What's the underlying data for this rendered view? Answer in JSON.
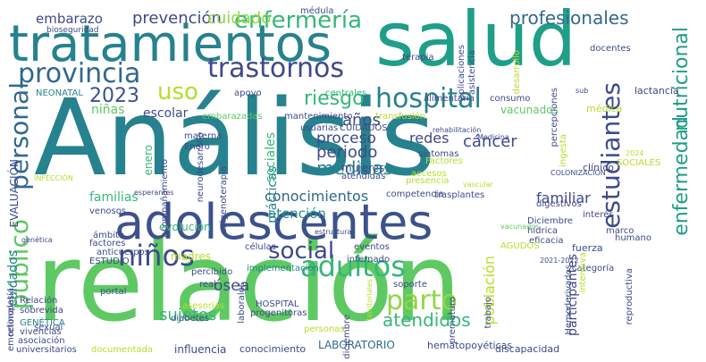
{
  "word_cloud": {
    "palette": {
      "dark_purple": "#440154",
      "indigo": "#3b528b",
      "slate_blue": "#3e4a89",
      "blue": "#31688e",
      "teal": "#26828e",
      "teal_green": "#1f9e89",
      "green": "#35b779",
      "light_green": "#6ece58",
      "lime": "#b5de2b",
      "yellow": "#dde318"
    },
    "words": [
      {
        "text": "Análisis",
        "color": "#26828e"
      },
      {
        "text": "relación",
        "color": "#5ec962"
      },
      {
        "text": "salud",
        "color": "#1f9e89"
      },
      {
        "text": "adolescentes",
        "color": "#3b528b"
      },
      {
        "text": "tratamientos",
        "color": "#26828e"
      },
      {
        "text": "provincia",
        "color": "#31688e"
      },
      {
        "text": "trastornos",
        "color": "#3e4a89"
      },
      {
        "text": "enfermería",
        "color": "#35b779"
      },
      {
        "text": "profesionales",
        "color": "#31688e"
      },
      {
        "text": "nutricional",
        "color": "#1f9e89"
      },
      {
        "text": "estudiantes",
        "color": "#3e4a89"
      },
      {
        "text": "enfermedad",
        "color": "#1f9e89"
      },
      {
        "text": "hospital",
        "color": "#26828e"
      },
      {
        "text": "niños",
        "color": "#3e4a89"
      },
      {
        "text": "adultos",
        "color": "#35b779"
      },
      {
        "text": "personal",
        "color": "#31688e"
      },
      {
        "text": "parto",
        "color": "#90d743"
      },
      {
        "text": "social",
        "color": "#3e4a89"
      },
      {
        "text": "uso",
        "color": "#b5de2b"
      },
      {
        "text": "2023",
        "color": "#3b528b"
      },
      {
        "text": "prevención",
        "color": "#3e4a89"
      },
      {
        "text": "cuidado",
        "color": "#90d743"
      },
      {
        "text": "embarazo",
        "color": "#3e4a89"
      },
      {
        "text": "riesgo",
        "color": "#35b779"
      },
      {
        "text": "público",
        "color": "#5ec962"
      },
      {
        "text": "conocimientos",
        "color": "#31688e"
      },
      {
        "text": "familiar",
        "color": "#3e4a89"
      },
      {
        "text": "atención",
        "color": "#21918c"
      },
      {
        "text": "familias",
        "color": "#35b779"
      },
      {
        "text": "atendidos",
        "color": "#35b779"
      },
      {
        "text": "sujetos",
        "color": "#35b779"
      },
      {
        "text": "cáncer",
        "color": "#3e4a89"
      },
      {
        "text": "periodo",
        "color": "#3e4a89"
      },
      {
        "text": "proceso",
        "color": "#3e4a89"
      },
      {
        "text": "medidas",
        "color": "#26828e"
      },
      {
        "text": "prácticas",
        "color": "#26828e"
      },
      {
        "text": "sociales",
        "color": "#35b779"
      },
      {
        "text": "redes",
        "color": "#3e4a89"
      },
      {
        "text": "años",
        "color": "#3e4a89"
      },
      {
        "text": "población",
        "color": "#b5de2b"
      },
      {
        "text": "escolar",
        "color": "#3e4a89"
      },
      {
        "text": "niñas",
        "color": "#5ec962"
      },
      {
        "text": "ósea",
        "color": "#3e4a89"
      },
      {
        "text": "cuidados",
        "color": "#26828e"
      },
      {
        "text": "EVALUACIÓN",
        "color": "#3e4a89"
      },
      {
        "text": "enero",
        "color": "#35b779"
      },
      {
        "text": "mujeres",
        "color": "#3e4a89"
      },
      {
        "text": "vacunados",
        "color": "#5ec962"
      },
      {
        "text": "participantes",
        "color": "#3e4a89"
      },
      {
        "text": "LABORATORIO",
        "color": "#31688e"
      },
      {
        "text": "influencia",
        "color": "#3e4a89"
      },
      {
        "text": "conocimiento",
        "color": "#3e4a89"
      },
      {
        "text": "hematopoyéticas",
        "color": "#3e4a89"
      },
      {
        "text": "discapacidad",
        "color": "#3e4a89"
      },
      {
        "text": "universitarios",
        "color": "#3e4a89"
      },
      {
        "text": "documentada",
        "color": "#b5de2b"
      },
      {
        "text": "asociación",
        "color": "#3e4a89"
      },
      {
        "text": "vivencias",
        "color": "#3e4a89"
      },
      {
        "text": "GENÉTICA",
        "color": "#26828e"
      },
      {
        "text": "sobrevida",
        "color": "#3e4a89"
      },
      {
        "text": "Relación",
        "color": "#3e4a89"
      },
      {
        "text": "portal",
        "color": "#3e4a89"
      },
      {
        "text": "real",
        "color": "#3e4a89"
      },
      {
        "text": "diabetes",
        "color": "#3e4a89"
      },
      {
        "text": "madres",
        "color": "#b5de2b"
      },
      {
        "text": "percibido",
        "color": "#3e4a89"
      },
      {
        "text": "progenitoras",
        "color": "#3e4a89"
      },
      {
        "text": "implementación",
        "color": "#26828e"
      },
      {
        "text": "células",
        "color": "#3e4a89"
      },
      {
        "text": "eventos",
        "color": "#3e4a89"
      },
      {
        "text": "internado",
        "color": "#3e4a89"
      },
      {
        "text": "trasplantes",
        "color": "#3e4a89"
      },
      {
        "text": "competencia",
        "color": "#3e4a89"
      },
      {
        "text": "evolución",
        "color": "#35b779"
      },
      {
        "text": "ámbito",
        "color": "#3e4a89"
      },
      {
        "text": "factores",
        "color": "#3e4a89"
      },
      {
        "text": "anticuerpos",
        "color": "#3e4a89"
      },
      {
        "text": "ESTUDIO",
        "color": "#3e4a89"
      },
      {
        "text": "venosos",
        "color": "#3e4a89"
      },
      {
        "text": "mantenimiento",
        "color": "#3e4a89"
      },
      {
        "text": "embarazadas",
        "color": "#5ec962"
      },
      {
        "text": "usuarias",
        "color": "#3e4a89"
      },
      {
        "text": "CUIDADOS",
        "color": "#3e4a89"
      },
      {
        "text": "atendidas",
        "color": "#3e4a89"
      },
      {
        "text": "alimentaria",
        "color": "#3e4a89"
      },
      {
        "text": "centrales",
        "color": "#35b779"
      },
      {
        "text": "consumo",
        "color": "#3e4a89"
      },
      {
        "text": "transfusión",
        "color": "#b5de2b"
      },
      {
        "text": "lactancia",
        "color": "#3e4a89"
      },
      {
        "text": "médica",
        "color": "#b5de2b"
      },
      {
        "text": "clínico",
        "color": "#3e4a89"
      },
      {
        "text": "interés",
        "color": "#3e4a89"
      },
      {
        "text": "SOCIALES",
        "color": "#b5de2b"
      },
      {
        "text": "marco",
        "color": "#3e4a89"
      },
      {
        "text": "humano",
        "color": "#3e4a89"
      },
      {
        "text": "Diciembre",
        "color": "#3e4a89"
      },
      {
        "text": "hídrica",
        "color": "#3e4a89"
      },
      {
        "text": "eficacia",
        "color": "#3e4a89"
      },
      {
        "text": "fuerza",
        "color": "#3e4a89"
      },
      {
        "text": "categoría",
        "color": "#3e4a89"
      },
      {
        "text": "AGUDOS",
        "color": "#b5de2b"
      },
      {
        "text": "digestivos",
        "color": "#3e4a89"
      },
      {
        "text": "síntomas",
        "color": "#3e4a89"
      },
      {
        "text": "accesos",
        "color": "#b5de2b"
      },
      {
        "text": "presencia",
        "color": "#b5de2b"
      },
      {
        "text": "Factores",
        "color": "#b5de2b"
      },
      {
        "text": "ingesta",
        "color": "#b5de2b"
      },
      {
        "text": "percepciones",
        "color": "#3e4a89"
      },
      {
        "text": "aplicaciones",
        "color": "#3e4a89"
      },
      {
        "text": "asistencia",
        "color": "#3e4a89"
      },
      {
        "text": "desarrollo",
        "color": "#b5de2b"
      },
      {
        "text": "terapia",
        "color": "#3e4a89"
      },
      {
        "text": "docentes",
        "color": "#3e4a89"
      },
      {
        "text": "médula",
        "color": "#3e4a89"
      },
      {
        "text": "bioseguridad",
        "color": "#3e4a89"
      },
      {
        "text": "NEONATAL",
        "color": "#26828e"
      },
      {
        "text": "apoyo",
        "color": "#3e4a89"
      },
      {
        "text": "materna",
        "color": "#3e4a89"
      },
      {
        "text": "Enero",
        "color": "#3e4a89"
      },
      {
        "text": "oxigenoterapia",
        "color": "#3e4a89"
      },
      {
        "text": "neurodesarrollo",
        "color": "#3e4a89"
      },
      {
        "text": "acompañamiento",
        "color": "#3e4a89"
      },
      {
        "text": "HOSPITAL",
        "color": "#3e4a89"
      },
      {
        "text": "asesorías",
        "color": "#b5de2b"
      },
      {
        "text": "laborales",
        "color": "#3e4a89"
      },
      {
        "text": "diciembre",
        "color": "#3e4a89"
      },
      {
        "text": "territoriales",
        "color": "#b5de2b"
      },
      {
        "text": "soporte",
        "color": "#3e4a89"
      },
      {
        "text": "prematuro",
        "color": "#3e4a89"
      },
      {
        "text": "trabajo",
        "color": "#3e4a89"
      },
      {
        "text": "personas",
        "color": "#b5de2b"
      },
      {
        "text": "reproductiva",
        "color": "#3e4a89"
      },
      {
        "text": "intensiva",
        "color": "#b5de2b"
      },
      {
        "text": "Hemoderivados",
        "color": "#3e4a89"
      },
      {
        "text": "sexual",
        "color": "#3e4a89"
      },
      {
        "text": "emocionales",
        "color": "#3e4a89"
      },
      {
        "text": "retinopatía",
        "color": "#3e4a89"
      },
      {
        "text": "genética",
        "color": "#3e4a89"
      },
      {
        "text": "INFECCIÓN",
        "color": "#b5de2b"
      },
      {
        "text": "2024",
        "color": "#b5de2b"
      },
      {
        "text": "sub",
        "color": "#3e4a89"
      },
      {
        "text": "vacunados",
        "color": "#5ec962"
      },
      {
        "text": "estructura",
        "color": "#3e4a89"
      },
      {
        "text": "COLONIZACIÓN",
        "color": "#3e4a89"
      },
      {
        "text": "2021-2022",
        "color": "#3e4a89"
      },
      {
        "text": "rehabilitación",
        "color": "#3e4a89"
      },
      {
        "text": "Medicina",
        "color": "#3e4a89"
      },
      {
        "text": "esperantes",
        "color": "#3e4a89"
      },
      {
        "text": "vascular",
        "color": "#b5de2b"
      }
    ]
  }
}
